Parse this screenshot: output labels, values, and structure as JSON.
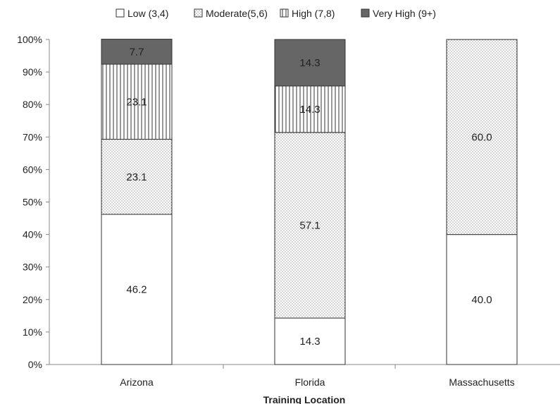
{
  "chart_data": {
    "type": "bar",
    "stacked": true,
    "percent": true,
    "title": "",
    "xlabel": "Training Location",
    "ylabel": "",
    "ylim": [
      0,
      100
    ],
    "y_ticks": [
      "0%",
      "10%",
      "20%",
      "30%",
      "40%",
      "50%",
      "60%",
      "70%",
      "80%",
      "90%",
      "100%"
    ],
    "categories": [
      "Arizona",
      "Florida",
      "Massachusetts"
    ],
    "series": [
      {
        "name": "Low (3,4)",
        "pattern": "blank",
        "color": "#ffffff",
        "values": [
          46.2,
          14.3,
          40.0
        ],
        "labels": [
          "46.2",
          "14.3",
          "40.0"
        ]
      },
      {
        "name": "Moderate(5,6)",
        "pattern": "dots",
        "color": "#ffffff",
        "values": [
          23.1,
          57.1,
          60.0
        ],
        "labels": [
          "23.1",
          "57.1",
          "60.0"
        ]
      },
      {
        "name": "High (7,8)",
        "pattern": "vertical-lines",
        "color": "#ffffff",
        "values": [
          23.1,
          14.3,
          0
        ],
        "labels": [
          "23.1",
          "14.3",
          ""
        ]
      },
      {
        "name": "Very High (9+)",
        "pattern": "solid-dark",
        "color": "#666666",
        "values": [
          7.7,
          14.3,
          0
        ],
        "labels": [
          "7.7",
          "14.3",
          ""
        ]
      }
    ],
    "legend_position": "top",
    "grid": false
  }
}
